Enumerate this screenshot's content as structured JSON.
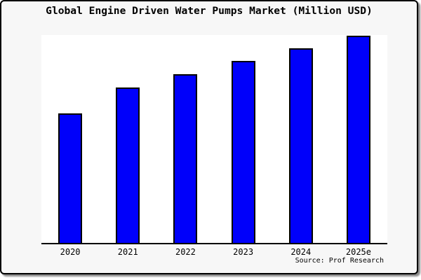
{
  "title": "Global Engine Driven Water Pumps Market (Million USD)",
  "source": "Source: Prof Research",
  "colors": {
    "bar_fill": "#0000fa",
    "bar_edge": "#000000",
    "card_background": "#f7f7f7",
    "plot_background": "#ffffff",
    "card_border": "#000000",
    "shadow": "#8a8a8a"
  },
  "chart_data": {
    "type": "bar",
    "title": "Global Engine Driven Water Pumps Market (Million USD)",
    "categories": [
      "2020",
      "2021",
      "2022",
      "2023",
      "2024",
      "2025e"
    ],
    "values": [
      62.5,
      75.0,
      81.4,
      87.8,
      93.9,
      100
    ],
    "values_note": "No y-axis scale or data labels are shown in the chart; values are relative bar heights normalized so the tallest bar (2025e) = 100.",
    "xlabel": "",
    "ylabel": "",
    "ylim": [
      0,
      100.3
    ],
    "grid": false,
    "legend": false,
    "y_axis_ticks": [],
    "source_note": "Source: Prof Research"
  }
}
